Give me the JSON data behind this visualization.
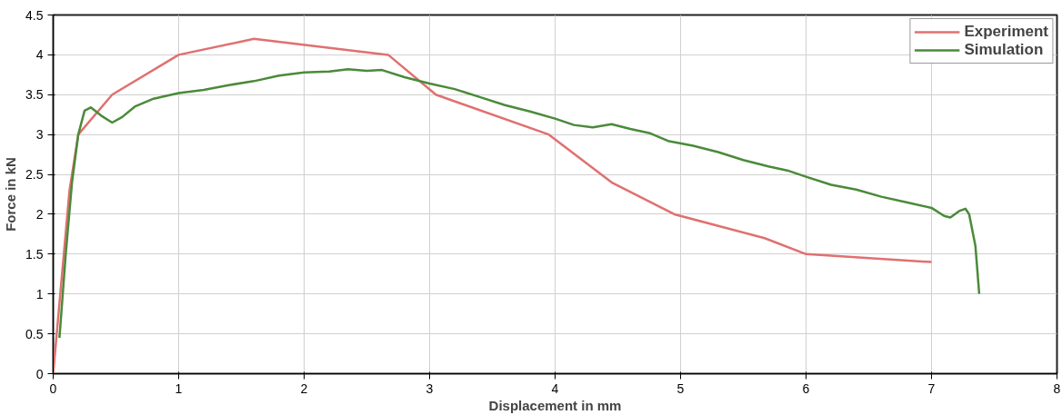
{
  "chart_data": {
    "type": "line",
    "xlabel": "Displacement in mm",
    "ylabel": "Force in kN",
    "xlim": [
      0,
      8
    ],
    "ylim": [
      0,
      4.5
    ],
    "xticks": [
      0,
      1,
      2,
      3,
      4,
      5,
      6,
      7,
      8
    ],
    "yticks": [
      0,
      0.5,
      1,
      1.5,
      2,
      2.5,
      3,
      3.5,
      4,
      4.5
    ],
    "grid": true,
    "legend": "top right",
    "marker": "none",
    "line_style": "solid",
    "series": [
      {
        "name": "Experiment",
        "color": "#e07070",
        "x": [
          0,
          0.13,
          0.2,
          0.47,
          1.0,
          1.6,
          2.67,
          3.05,
          3.95,
          4.45,
          4.95,
          5.67,
          6.0,
          7.0
        ],
        "values": [
          0,
          2.3,
          3.0,
          3.5,
          4.0,
          4.2,
          4.0,
          3.5,
          3.0,
          2.4,
          2.0,
          1.7,
          1.5,
          1.4
        ]
      },
      {
        "name": "Simulation",
        "color": "#4a8a3a",
        "x": [
          0.05,
          0.1,
          0.15,
          0.2,
          0.25,
          0.3,
          0.38,
          0.47,
          0.55,
          0.65,
          0.8,
          1.0,
          1.2,
          1.4,
          1.6,
          1.8,
          2.0,
          2.2,
          2.35,
          2.5,
          2.62,
          2.8,
          3.0,
          3.2,
          3.4,
          3.6,
          3.8,
          4.0,
          4.15,
          4.3,
          4.45,
          4.6,
          4.75,
          4.9,
          5.1,
          5.3,
          5.5,
          5.7,
          5.85,
          6.0,
          6.2,
          6.4,
          6.6,
          6.8,
          7.0,
          7.1,
          7.15,
          7.22,
          7.27,
          7.3,
          7.35,
          7.38
        ],
        "values": [
          0.45,
          1.5,
          2.4,
          3.0,
          3.3,
          3.34,
          3.24,
          3.15,
          3.22,
          3.35,
          3.45,
          3.52,
          3.56,
          3.62,
          3.67,
          3.74,
          3.78,
          3.79,
          3.82,
          3.8,
          3.81,
          3.72,
          3.64,
          3.57,
          3.47,
          3.37,
          3.29,
          3.2,
          3.12,
          3.09,
          3.13,
          3.07,
          3.02,
          2.92,
          2.86,
          2.78,
          2.68,
          2.6,
          2.55,
          2.47,
          2.37,
          2.31,
          2.22,
          2.15,
          2.08,
          1.98,
          1.96,
          2.04,
          2.07,
          2.0,
          1.6,
          1.0
        ]
      }
    ]
  }
}
